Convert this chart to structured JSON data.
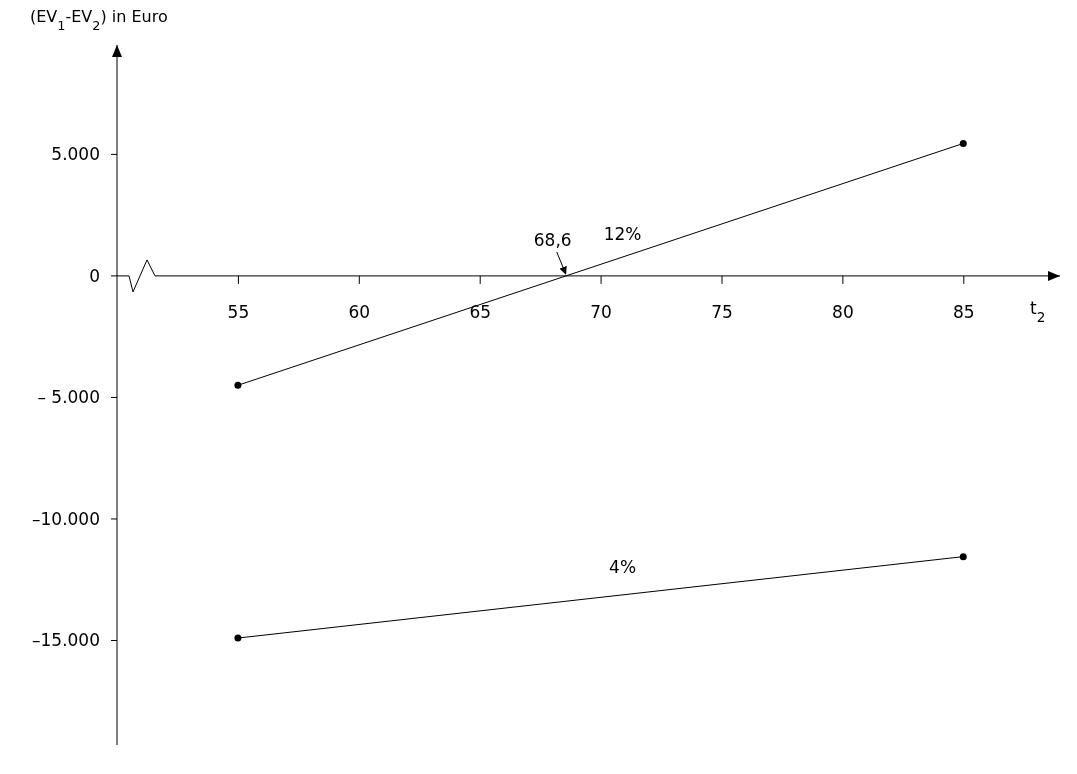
{
  "chart_data": {
    "type": "line",
    "ylabel": "(EV$_{1}$-EV$_{2}$) in Euro",
    "xlabel": "t$_{2}$",
    "x": [
      55,
      85
    ],
    "series": [
      {
        "name": "12%",
        "color": "#000000",
        "values": [
          -4500,
          5450
        ]
      },
      {
        "name": "4%",
        "color": "#000000",
        "values": [
          -14900,
          -11550
        ]
      }
    ],
    "xlim": [
      50,
      89
    ],
    "xticks": [
      55,
      60,
      65,
      70,
      75,
      80,
      85
    ],
    "ylim": [
      -19300,
      9500
    ],
    "yticks": [
      {
        "value": 5000,
        "label": "5.000"
      },
      0,
      {
        "value": -5000,
        "label": "– 5.000"
      },
      {
        "value": -10000,
        "label": "–10.000"
      },
      {
        "value": -15000,
        "label": "–15.000"
      }
    ],
    "annotations": [
      {
        "text": "68,6",
        "x": 68.6,
        "y": 0
      }
    ],
    "marker": "circle",
    "line_style": "solid"
  }
}
